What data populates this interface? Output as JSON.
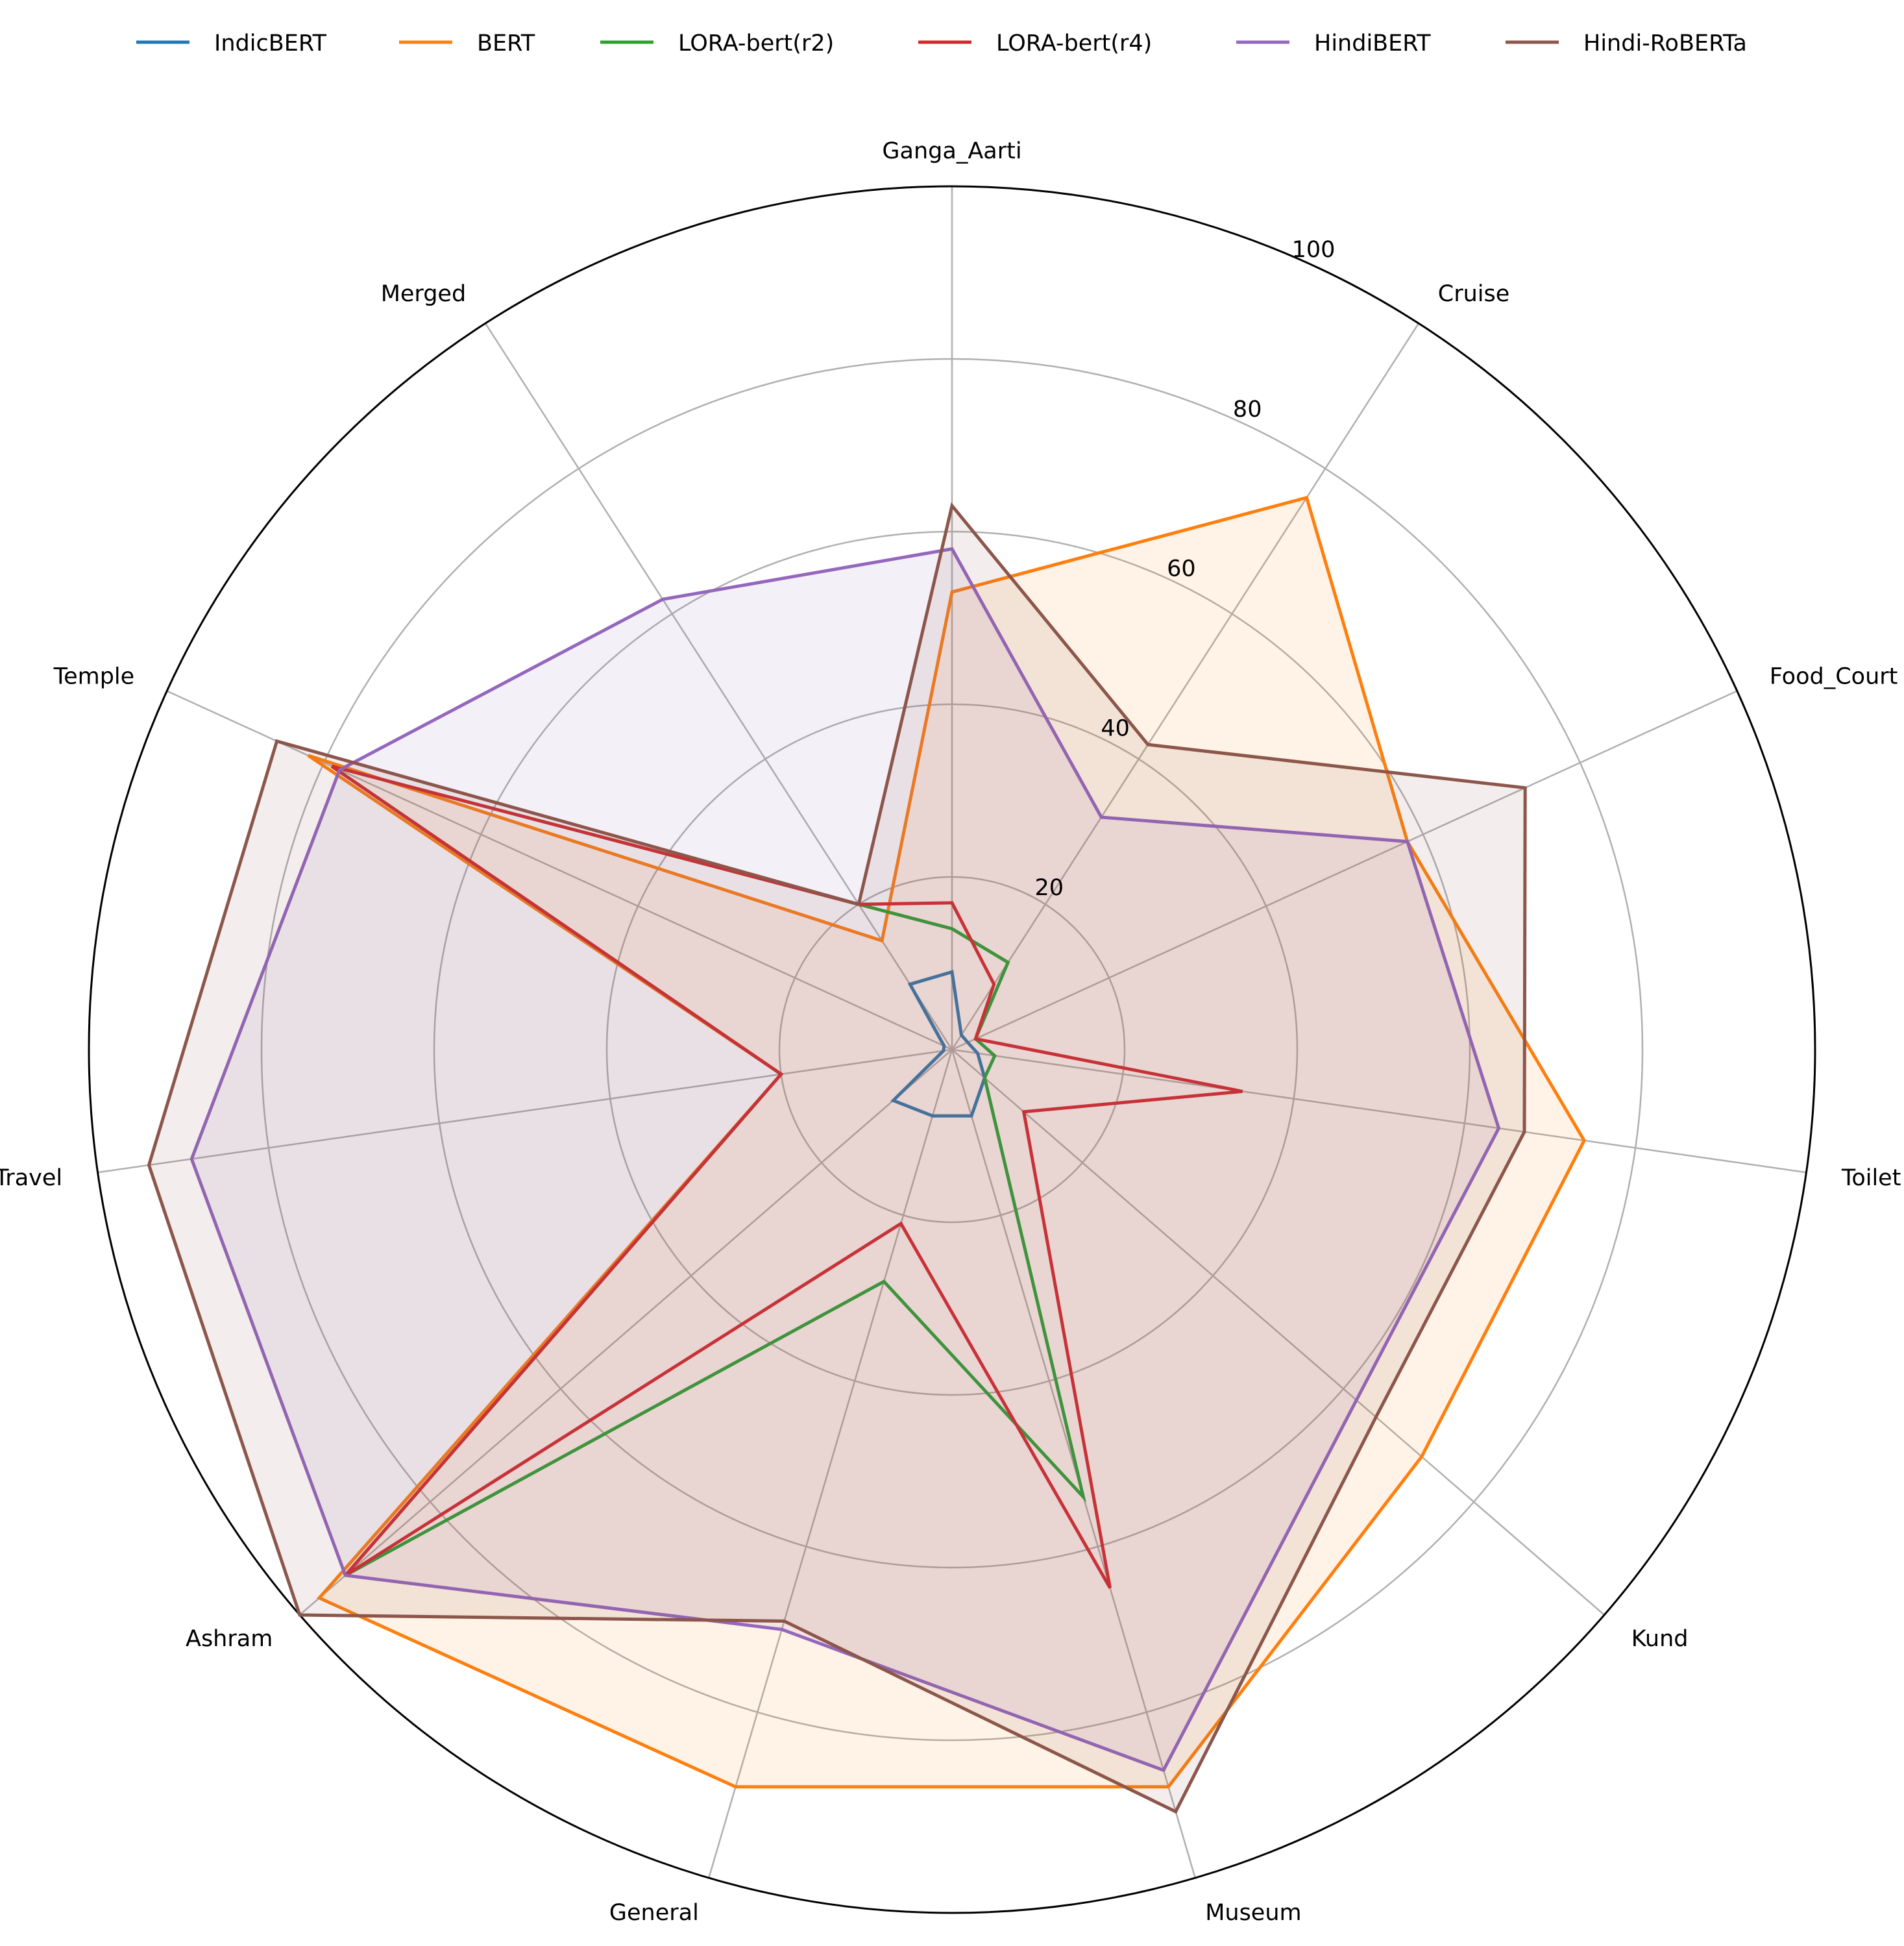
{
  "chart_data": {
    "type": "radar",
    "title": "",
    "categories": [
      "Ganga_Aarti",
      "Cruise",
      "Food_Court",
      "Toilet",
      "Kund",
      "Museum",
      "General",
      "Ashram",
      "Travel",
      "Temple",
      "Merged"
    ],
    "rlim": [
      0,
      100
    ],
    "rticks": [
      20,
      40,
      60,
      80,
      100
    ],
    "grid": true,
    "legend": "top, horizontal",
    "series": [
      {
        "name": "IndicBERT",
        "color": "#1f77b4",
        "values": [
          9,
          2,
          2,
          3,
          5,
          8,
          8,
          9,
          1,
          1,
          9
        ],
        "fill": false
      },
      {
        "name": "BERT",
        "color": "#ff7f0e",
        "values": [
          53,
          76,
          58,
          74,
          72,
          89,
          89,
          97,
          20,
          82,
          15
        ],
        "fill": true
      },
      {
        "name": "LORA-bert(r2)",
        "color": "#2ca02c",
        "values": [
          14,
          12,
          3,
          5,
          5,
          54,
          28,
          93,
          20,
          79,
          20
        ],
        "fill": false
      },
      {
        "name": "LORA-bert(r4)",
        "color": "#d62728",
        "values": [
          17,
          9,
          3,
          34,
          11,
          65,
          21,
          93,
          20,
          79,
          20
        ],
        "fill": false
      },
      {
        "name": "HindiBERT",
        "color": "#9467bd",
        "values": [
          58,
          32,
          58,
          64,
          62,
          87,
          70,
          93,
          89,
          78,
          62
        ],
        "fill": true
      },
      {
        "name": "Hindi-RoBERTa",
        "color": "#8c564b",
        "values": [
          63,
          42,
          73,
          67,
          65,
          92,
          69,
          100,
          94,
          86,
          20
        ],
        "fill": true
      }
    ]
  }
}
